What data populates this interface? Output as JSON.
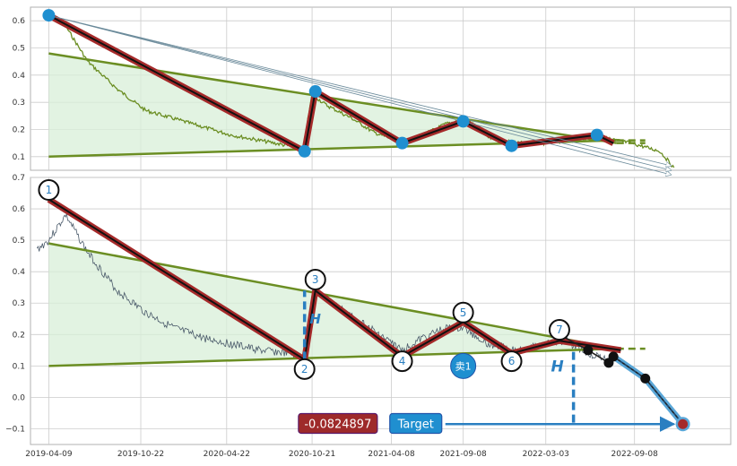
{
  "colors": {
    "price": "#6b8e23",
    "trend": "#6b8e23",
    "wave_outer": "#a52a2a",
    "wave_inner": "#111111",
    "marker": "#1f8fd0",
    "fill": "#d8efd8",
    "target": "#2a7fc1",
    "value_box": "#9e2a2a",
    "grid": "#cccccc",
    "axes_bg": "#ffffff"
  },
  "chart_data": [
    {
      "type": "line",
      "panel": "top",
      "ylim": [
        0.05,
        0.65
      ],
      "yticks": [
        0.1,
        0.2,
        0.3,
        0.4,
        0.5,
        0.6
      ],
      "ytick_labels": [
        "0.1",
        "0.2",
        "0.3",
        "0.4",
        "0.5",
        "0.6"
      ],
      "xlim": [
        "2019-03-01",
        "2023-04-01"
      ],
      "grid": true,
      "series": [
        {
          "role": "price",
          "x": [
            "2019-04-09",
            "2019-05-15",
            "2019-07-01",
            "2019-09-01",
            "2019-11-01",
            "2020-01-01",
            "2020-03-01",
            "2020-05-01",
            "2020-07-01",
            "2020-09-01",
            "2020-10-01",
            "2020-10-21",
            "2020-11-20",
            "2021-01-15",
            "2021-03-01",
            "2021-05-01",
            "2021-06-15",
            "2021-08-01",
            "2021-09-15",
            "2021-11-01",
            "2022-01-01",
            "2022-03-01",
            "2022-05-01",
            "2022-07-01",
            "2022-09-01",
            "2022-11-01",
            "2022-12-01"
          ],
          "y": [
            0.62,
            0.58,
            0.45,
            0.35,
            0.27,
            0.24,
            0.21,
            0.18,
            0.16,
            0.14,
            0.12,
            0.33,
            0.29,
            0.24,
            0.19,
            0.15,
            0.18,
            0.22,
            0.24,
            0.17,
            0.15,
            0.15,
            0.16,
            0.17,
            0.15,
            0.12,
            0.06
          ]
        },
        {
          "role": "wave",
          "x": [
            "2019-04-09",
            "2020-10-05",
            "2020-10-28",
            "2021-05-01",
            "2021-09-08",
            "2021-12-20",
            "2022-06-20",
            "2022-07-25"
          ],
          "y": [
            0.62,
            0.12,
            0.34,
            0.15,
            0.23,
            0.14,
            0.18,
            0.15
          ]
        },
        {
          "role": "trend-upper",
          "x": [
            "2019-04-09",
            "2022-08-01"
          ],
          "y": [
            0.48,
            0.15
          ],
          "dash_to": [
            "2022-10-01",
            0.15
          ]
        },
        {
          "role": "trend-lower",
          "x": [
            "2019-04-09",
            "2022-08-01"
          ],
          "y": [
            0.1,
            0.16
          ],
          "dash_to": [
            "2022-10-01",
            0.16
          ]
        },
        {
          "role": "markers",
          "x": [
            "2019-04-09",
            "2020-10-05",
            "2020-10-28",
            "2021-05-01",
            "2021-09-08",
            "2021-12-20",
            "2022-06-20"
          ],
          "y": [
            0.62,
            0.12,
            0.34,
            0.15,
            0.23,
            0.14,
            0.18
          ]
        },
        {
          "role": "target-arrows",
          "x": [
            "2019-04-09",
            "2022-11-25"
          ],
          "y": [
            0.62,
            0.05
          ]
        }
      ]
    },
    {
      "type": "line",
      "panel": "bottom",
      "ylim": [
        -0.15,
        0.7
      ],
      "yticks": [
        -0.1,
        0.0,
        0.1,
        0.2,
        0.3,
        0.4,
        0.5,
        0.6,
        0.7
      ],
      "ytick_labels": [
        "−0.1",
        "0.0",
        "0.1",
        "0.2",
        "0.3",
        "0.4",
        "0.5",
        "0.6",
        "0.7"
      ],
      "xlim": [
        "2019-03-01",
        "2023-04-01"
      ],
      "xticks": [
        "2019-04-09",
        "2019-10-22",
        "2020-04-22",
        "2020-10-21",
        "2021-04-08",
        "2021-09-08",
        "2022-03-03",
        "2022-09-08"
      ],
      "xtick_labels": [
        "2019-04-09",
        "2019-10-22",
        "2020-04-22",
        "2020-10-21",
        "2021-04-08",
        "2021-09-08",
        "2022-03-03",
        "2022-09-08"
      ],
      "grid": true,
      "series": [
        {
          "role": "price",
          "x": [
            "2019-03-15",
            "2019-04-09",
            "2019-05-15",
            "2019-07-01",
            "2019-09-01",
            "2019-11-01",
            "2020-01-01",
            "2020-03-01",
            "2020-05-01",
            "2020-07-01",
            "2020-09-01",
            "2020-10-05",
            "2020-10-28",
            "2020-12-01",
            "2021-02-01",
            "2021-04-01",
            "2021-05-01",
            "2021-06-15",
            "2021-08-01",
            "2021-09-08",
            "2021-11-01",
            "2022-01-01",
            "2022-03-01",
            "2022-04-15",
            "2022-06-01",
            "2022-07-15"
          ],
          "y": [
            0.47,
            0.5,
            0.58,
            0.46,
            0.34,
            0.27,
            0.22,
            0.19,
            0.17,
            0.15,
            0.14,
            0.12,
            0.34,
            0.3,
            0.24,
            0.18,
            0.15,
            0.19,
            0.22,
            0.22,
            0.17,
            0.15,
            0.17,
            0.18,
            0.14,
            0.12
          ]
        },
        {
          "role": "wave",
          "x": [
            "2019-04-09",
            "2020-10-05",
            "2020-10-28",
            "2021-05-01",
            "2021-09-08",
            "2021-12-20",
            "2022-04-01",
            "2022-08-10"
          ],
          "y": [
            0.63,
            0.12,
            0.34,
            0.13,
            0.24,
            0.14,
            0.18,
            0.15
          ]
        },
        {
          "role": "trend-upper",
          "x": [
            "2019-04-09",
            "2022-08-01"
          ],
          "y": [
            0.49,
            0.155
          ],
          "dash_to": [
            "2022-10-01",
            0.155
          ]
        },
        {
          "role": "trend-lower",
          "x": [
            "2019-04-09",
            "2022-08-01"
          ],
          "y": [
            0.1,
            0.155
          ]
        },
        {
          "role": "wave-labels",
          "x": [
            "2019-04-09",
            "2020-10-05",
            "2020-10-28",
            "2021-05-01",
            "2021-09-08",
            "2021-12-20",
            "2022-04-01"
          ],
          "y": [
            0.66,
            0.09,
            0.375,
            0.115,
            0.27,
            0.115,
            0.215
          ],
          "labels": [
            "1",
            "2",
            "3",
            "4",
            "5",
            "6",
            "7"
          ]
        },
        {
          "role": "forecast",
          "x": [
            "2022-04-01",
            "2022-06-01",
            "2022-07-15",
            "2022-07-25",
            "2022-10-01",
            "2022-12-20"
          ],
          "y": [
            0.2,
            0.15,
            0.11,
            0.13,
            0.06,
            -0.085
          ]
        },
        {
          "role": "height-h",
          "x": [
            "2020-10-05",
            "2020-10-05"
          ],
          "y": [
            0.12,
            0.34
          ],
          "label": "H"
        },
        {
          "role": "height-h2",
          "x": [
            "2022-05-01",
            "2022-05-01"
          ],
          "y": [
            0.145,
            -0.085
          ],
          "label": "H"
        },
        {
          "role": "target-line",
          "x": [
            "2021-08-01",
            "2022-12-20"
          ],
          "y": [
            -0.085,
            -0.085
          ]
        },
        {
          "role": "sell-signal",
          "x": [
            "2021-09-08"
          ],
          "y": [
            0.1
          ],
          "label": "卖1"
        }
      ],
      "annotations": [
        {
          "text": "-0.0824897",
          "x": "2020-12-15",
          "y": -0.083
        },
        {
          "text": "Target",
          "x": "2021-08-01",
          "y": -0.083
        }
      ]
    }
  ]
}
